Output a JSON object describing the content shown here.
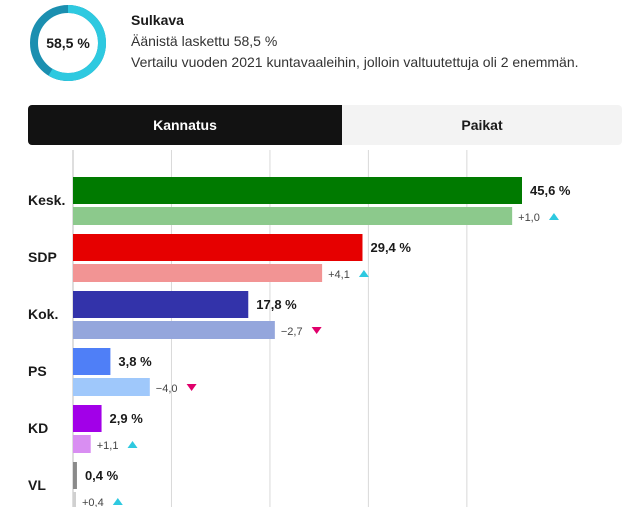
{
  "header": {
    "gauge_value": "58,5 %",
    "counted_fraction": 0.585,
    "municipality": "Sulkava",
    "counted_text": "Äänistä laskettu 58,5 %",
    "comparison_text": "Vertailu vuoden 2021 kuntavaaleihin, jolloin valtuutettuja oli 2 enemmän."
  },
  "tabs": [
    {
      "label": "Kannatus",
      "active": true
    },
    {
      "label": "Paikat",
      "active": false
    }
  ],
  "colors": {
    "gauge": "#2ec9e0",
    "gauge_track": "#1b8fb0",
    "up": "#2ec9e0",
    "down": "#e0006b"
  },
  "chart_data": {
    "type": "bar",
    "categories": [
      "Kesk.",
      "SDP",
      "Kok.",
      "PS",
      "KD",
      "VL"
    ],
    "series": [
      {
        "values": [
          45.6,
          29.4,
          17.8,
          3.8,
          2.9,
          0.4
        ],
        "value_labels": [
          "45,6 %",
          "29,4 %",
          "17,8 %",
          "3,8 %",
          "2,9 %",
          "0,4 %"
        ],
        "colors": [
          "#007a00",
          "#e60000",
          "#3333aa",
          "#4f7ff7",
          "#a200e8",
          "#8a8a8a"
        ]
      },
      {
        "values": [
          44.6,
          25.3,
          20.5,
          7.8,
          1.8,
          0.0
        ],
        "colors": [
          "#8cc98c",
          "#f29494",
          "#94a6dc",
          "#9fc8fb",
          "#d98ef2",
          "#d0d0d0"
        ]
      }
    ],
    "changes": [
      {
        "label": "+1,0",
        "direction": "up"
      },
      {
        "label": "+4,1",
        "direction": "up"
      },
      {
        "label": "−2,7",
        "direction": "down"
      },
      {
        "label": "−4,0",
        "direction": "down"
      },
      {
        "label": "+1,1",
        "direction": "up"
      },
      {
        "label": "+0,4",
        "direction": "up"
      }
    ],
    "xlim": [
      0,
      50
    ],
    "grid": true
  }
}
